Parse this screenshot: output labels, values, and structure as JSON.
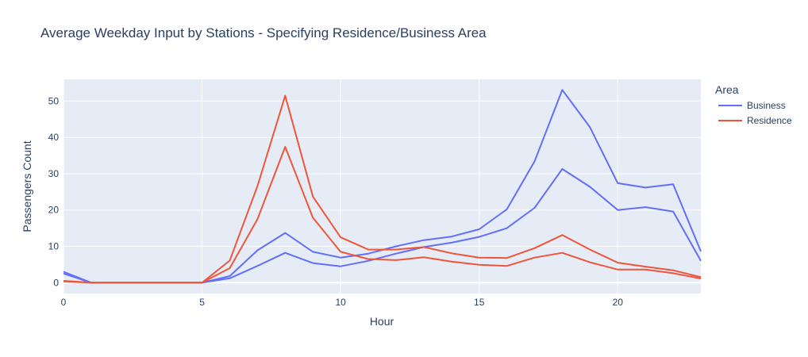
{
  "chart_data": {
    "type": "line",
    "title": "Average Weekday Input by Stations - Specifying Residence/Business Area",
    "xlabel": "Hour",
    "ylabel": "Passengers Count",
    "xlim": [
      0,
      23
    ],
    "ylim": [
      -3,
      56
    ],
    "xticks": [
      0,
      5,
      10,
      15,
      20
    ],
    "yticks": [
      0,
      10,
      20,
      30,
      40,
      50
    ],
    "grid": true,
    "legend_title": "Area",
    "legend_position": "top-right",
    "legend": [
      {
        "label": "Business",
        "color": "#636efa"
      },
      {
        "label": "Residence",
        "color": "#ef553b"
      }
    ],
    "x": [
      0,
      1,
      2,
      3,
      4,
      5,
      6,
      7,
      8,
      9,
      10,
      11,
      12,
      13,
      14,
      15,
      16,
      17,
      18,
      19,
      20,
      21,
      22,
      23
    ],
    "series": [
      {
        "name": "Business",
        "color": "#636efa",
        "values": [
          3,
          0,
          0,
          0,
          0,
          0,
          1.8,
          8.9,
          13.7,
          8.5,
          6.9,
          8,
          10,
          11.7,
          12.7,
          14.7,
          20.2,
          33.4,
          53.1,
          42.8,
          27.4,
          26.2,
          27.1,
          8.6
        ]
      },
      {
        "name": "Business",
        "color": "#636efa",
        "values": [
          2.5,
          0,
          0,
          0,
          0,
          0,
          1.2,
          4.6,
          8.2,
          5.4,
          4.5,
          6,
          8,
          9.8,
          11,
          12.6,
          15,
          20.6,
          31.3,
          26.4,
          20,
          20.8,
          19.6,
          6
        ]
      },
      {
        "name": "Residence",
        "color": "#ef553b",
        "values": [
          0.5,
          0,
          0,
          0,
          0,
          0,
          6.1,
          26.6,
          51.5,
          23.7,
          12.5,
          9.1,
          9.1,
          9.8,
          8.1,
          6.9,
          6.8,
          9.5,
          13.1,
          9.1,
          5.5,
          4.4,
          3.4,
          1.5
        ]
      },
      {
        "name": "Residence",
        "color": "#ef553b",
        "values": [
          0.3,
          0,
          0,
          0,
          0,
          0,
          4,
          17.5,
          37.4,
          17.9,
          8.5,
          6.5,
          6.2,
          7,
          5.8,
          4.9,
          4.6,
          6.9,
          8.2,
          5.6,
          3.6,
          3.6,
          2.6,
          1.1
        ]
      }
    ]
  }
}
